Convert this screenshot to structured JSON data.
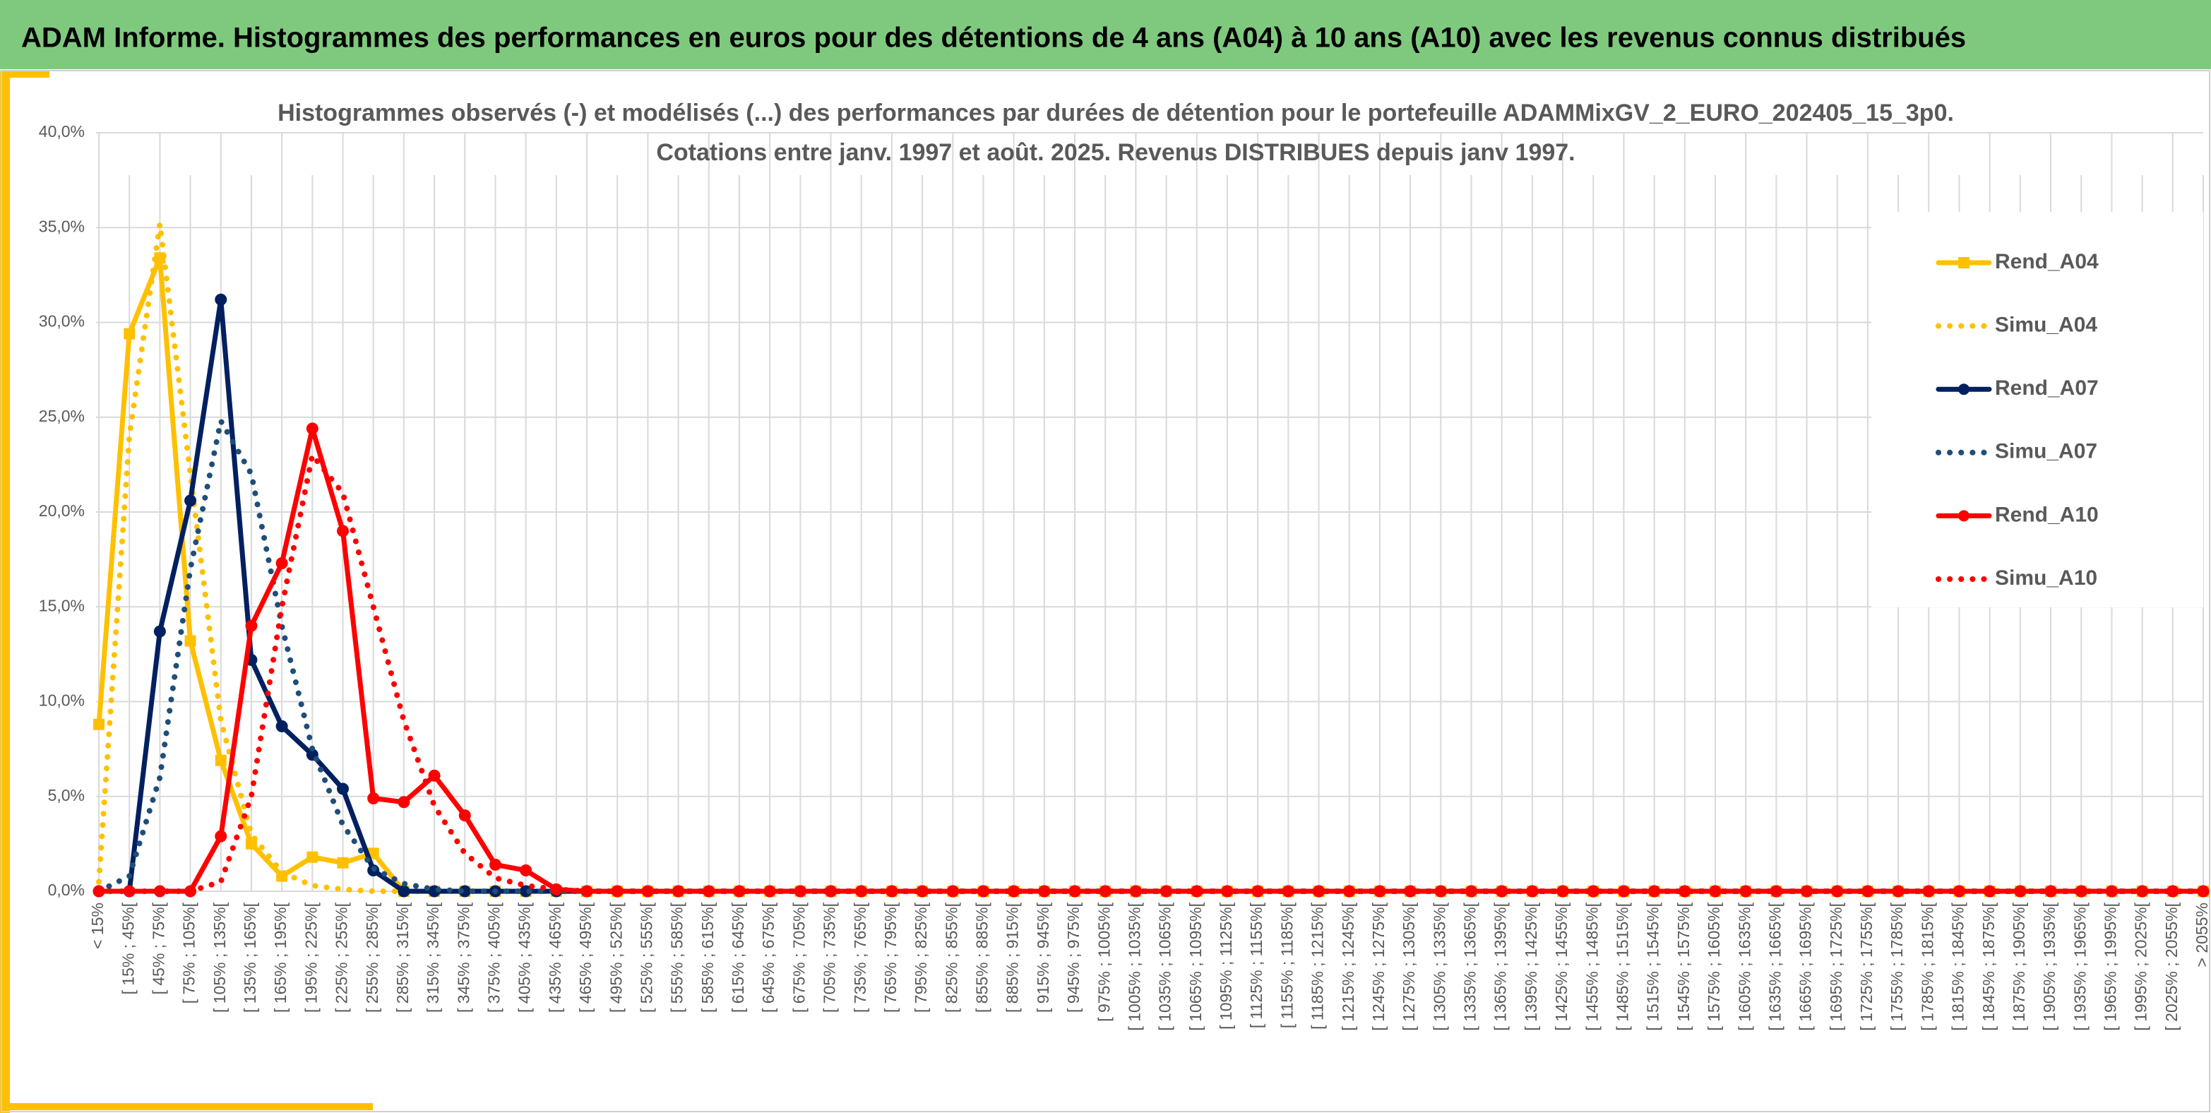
{
  "header": {
    "title": "ADAM Informe. Histogrammes des performances en euros pour des détentions de 4 ans (A04) à 10 ans (A10) avec les revenus connus distribués"
  },
  "chart_data": {
    "type": "line",
    "title": [
      "Histogrammes observés (-) et modélisés (...) des performances par durées de détention pour le portefeuille ADAMMixGV_2_EURO_202405_15_3p0.",
      "Cotations entre janv. 1997 et août. 2025. Revenus DISTRIBUES depuis janv 1997."
    ],
    "categories": [
      "< 15%",
      "[ 15% ; 45%[",
      "[ 45% ; 75%[",
      "[ 75% ; 105%[",
      "[ 105% ; 135%[",
      "[ 135% ; 165%[",
      "[ 165% ; 195%[",
      "[ 195% ; 225%[",
      "[ 225% ; 255%[",
      "[ 255% ; 285%[",
      "[ 285% ; 315%[",
      "[ 315% ; 345%[",
      "[ 345% ; 375%[",
      "[ 375% ; 405%[",
      "[ 405% ; 435%[",
      "[ 435% ; 465%[",
      "[ 465% ; 495%[",
      "[ 495% ; 525%[",
      "[ 525% ; 555%[",
      "[ 555% ; 585%[",
      "[ 585% ; 615%[",
      "[ 615% ; 645%[",
      "[ 645% ; 675%[",
      "[ 675% ; 705%[",
      "[ 705% ; 735%[",
      "[ 735% ; 765%[",
      "[ 765% ; 795%[",
      "[ 795% ; 825%[",
      "[ 825% ; 855%[",
      "[ 855% ; 885%[",
      "[ 885% ; 915%[",
      "[ 915% ; 945%[",
      "[ 945% ; 975%[",
      "[ 975% ; 1005%[",
      "[ 1005% ; 1035%[",
      "[ 1035% ; 1065%[",
      "[ 1065% ; 1095%[",
      "[ 1095% ; 1125%[",
      "[ 1125% ; 1155%[",
      "[ 1155% ; 1185%[",
      "[ 1185% ; 1215%[",
      "[ 1215% ; 1245%[",
      "[ 1245% ; 1275%[",
      "[ 1275% ; 1305%[",
      "[ 1305% ; 1335%[",
      "[ 1335% ; 1365%[",
      "[ 1365% ; 1395%[",
      "[ 1395% ; 1425%[",
      "[ 1425% ; 1455%[",
      "[ 1455% ; 1485%[",
      "[ 1485% ; 1515%[",
      "[ 1515% ; 1545%[",
      "[ 1545% ; 1575%[",
      "[ 1575% ; 1605%[",
      "[ 1605% ; 1635%[",
      "[ 1635% ; 1665%[",
      "[ 1665% ; 1695%[",
      "[ 1695% ; 1725%[",
      "[ 1725% ; 1755%[",
      "[ 1755% ; 1785%[",
      "[ 1785% ; 1815%[",
      "[ 1815% ; 1845%[",
      "[ 1845% ; 1875%[",
      "[ 1875% ; 1905%[",
      "[ 1905% ; 1935%[",
      "[ 1935% ; 1965%[",
      "[ 1965% ; 1995%[",
      "[ 1995% ; 2025%[",
      "[ 2025% ; 2055%[",
      "> 2055%"
    ],
    "series": [
      {
        "name": "Rend_A04",
        "color": "#FFC000",
        "dash": "solid",
        "marker": "square",
        "values": [
          8.8,
          29.4,
          33.4,
          13.2,
          6.9,
          2.5,
          0.8,
          1.8,
          1.5,
          2.0,
          0,
          0,
          0,
          0,
          0,
          0,
          0,
          0,
          0,
          0,
          0,
          0,
          0,
          0,
          0,
          0,
          0,
          0,
          0,
          0,
          0,
          0,
          0,
          0,
          0,
          0,
          0,
          0,
          0,
          0,
          0,
          0,
          0,
          0,
          0,
          0,
          0,
          0,
          0,
          0,
          0,
          0,
          0,
          0,
          0,
          0,
          0,
          0,
          0,
          0,
          0,
          0,
          0,
          0,
          0,
          0,
          0,
          0,
          0,
          0
        ]
      },
      {
        "name": "Simu_A04",
        "color": "#FFC000",
        "dash": "dotted",
        "marker": "none",
        "values": [
          0.5,
          24,
          35.2,
          22,
          9,
          3,
          1,
          0.3,
          0.1,
          0,
          0,
          0,
          0,
          0,
          0,
          0,
          0,
          0,
          0,
          0,
          0,
          0,
          0,
          0,
          0,
          0,
          0,
          0,
          0,
          0,
          0,
          0,
          0,
          0,
          0,
          0,
          0,
          0,
          0,
          0,
          0,
          0,
          0,
          0,
          0,
          0,
          0,
          0,
          0,
          0,
          0,
          0,
          0,
          0,
          0,
          0,
          0,
          0,
          0,
          0,
          0,
          0,
          0,
          0,
          0,
          0,
          0,
          0,
          0,
          0
        ]
      },
      {
        "name": "Rend_A07",
        "color": "#002060",
        "dash": "solid",
        "marker": "circle",
        "values": [
          0,
          0,
          13.7,
          20.6,
          31.2,
          12.2,
          8.7,
          7.2,
          5.4,
          1.1,
          0,
          0,
          0,
          0,
          0,
          0,
          0,
          0,
          0,
          0,
          0,
          0,
          0,
          0,
          0,
          0,
          0,
          0,
          0,
          0,
          0,
          0,
          0,
          0,
          0,
          0,
          0,
          0,
          0,
          0,
          0,
          0,
          0,
          0,
          0,
          0,
          0,
          0,
          0,
          0,
          0,
          0,
          0,
          0,
          0,
          0,
          0,
          0,
          0,
          0,
          0,
          0,
          0,
          0,
          0,
          0,
          0,
          0,
          0,
          0
        ]
      },
      {
        "name": "Simu_A07",
        "color": "#1F4E79",
        "dash": "dotted",
        "marker": "none",
        "values": [
          0,
          0.8,
          6,
          17,
          24.8,
          22,
          14,
          7.5,
          3.5,
          1.2,
          0.4,
          0.1,
          0,
          0,
          0,
          0,
          0,
          0,
          0,
          0,
          0,
          0,
          0,
          0,
          0,
          0,
          0,
          0,
          0,
          0,
          0,
          0,
          0,
          0,
          0,
          0,
          0,
          0,
          0,
          0,
          0,
          0,
          0,
          0,
          0,
          0,
          0,
          0,
          0,
          0,
          0,
          0,
          0,
          0,
          0,
          0,
          0,
          0,
          0,
          0,
          0,
          0,
          0,
          0,
          0,
          0,
          0,
          0,
          0,
          0
        ]
      },
      {
        "name": "Rend_A10",
        "color": "#FF0000",
        "dash": "solid",
        "marker": "circle",
        "values": [
          0,
          0,
          0,
          0,
          2.9,
          14,
          17.3,
          24.4,
          19,
          4.9,
          4.7,
          6.1,
          4,
          1.4,
          1.1,
          0.1,
          0,
          0,
          0,
          0,
          0,
          0,
          0,
          0,
          0,
          0,
          0,
          0,
          0,
          0,
          0,
          0,
          0,
          0,
          0,
          0,
          0,
          0,
          0,
          0,
          0,
          0,
          0,
          0,
          0,
          0,
          0,
          0,
          0,
          0,
          0,
          0,
          0,
          0,
          0,
          0,
          0,
          0,
          0,
          0,
          0,
          0,
          0,
          0,
          0,
          0,
          0,
          0,
          0,
          0
        ]
      },
      {
        "name": "Simu_A10",
        "color": "#FF0000",
        "dash": "dotted",
        "marker": "none",
        "values": [
          0,
          0,
          0,
          0,
          0.5,
          5,
          15,
          23,
          21,
          15,
          9,
          4.5,
          2,
          0.7,
          0.3,
          0.1,
          0,
          0,
          0,
          0,
          0,
          0,
          0,
          0,
          0,
          0,
          0,
          0,
          0,
          0,
          0,
          0,
          0,
          0,
          0,
          0,
          0,
          0,
          0,
          0,
          0,
          0,
          0,
          0,
          0,
          0,
          0,
          0,
          0,
          0,
          0,
          0,
          0,
          0,
          0,
          0,
          0,
          0,
          0,
          0,
          0,
          0,
          0,
          0,
          0,
          0,
          0,
          0,
          0,
          0
        ]
      }
    ],
    "ylim": [
      0,
      40
    ],
    "yticks": [
      {
        "value": 0,
        "label": "0,0%"
      },
      {
        "value": 5,
        "label": "5,0%"
      },
      {
        "value": 10,
        "label": "10,0%"
      },
      {
        "value": 15,
        "label": "15,0%"
      },
      {
        "value": 20,
        "label": "20,0%"
      },
      {
        "value": 25,
        "label": "25,0%"
      },
      {
        "value": 30,
        "label": "30,0%"
      },
      {
        "value": 35,
        "label": "35,0%"
      },
      {
        "value": 40,
        "label": "40,0%"
      }
    ],
    "grid": true,
    "legend": "right"
  }
}
